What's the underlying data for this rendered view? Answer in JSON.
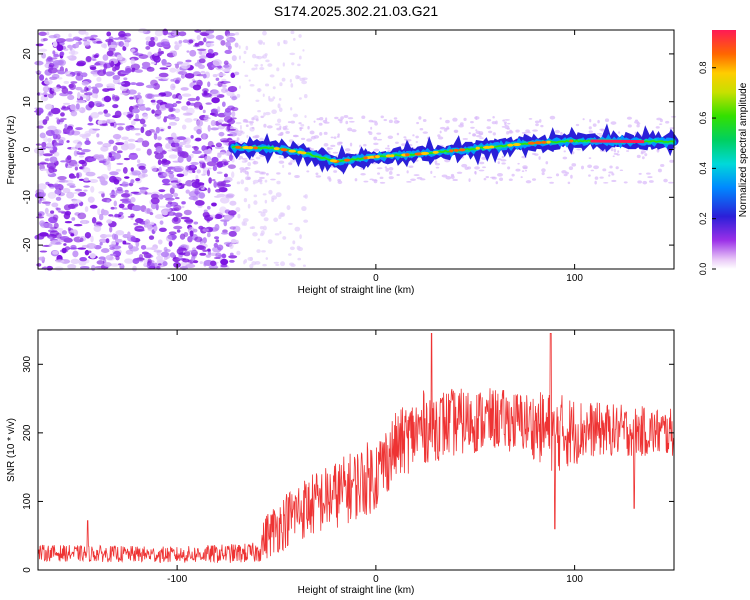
{
  "title": "S174.2025.302.21.03.G21",
  "chart_data": [
    {
      "type": "heatmap",
      "name": "spectrogram",
      "xlabel": "Height of straight line (km)",
      "ylabel": "Frequency (Hz)",
      "xlim": [
        -170,
        150
      ],
      "ylim": [
        -25,
        25
      ],
      "xticks": [
        -100,
        0,
        100
      ],
      "yticks": [
        -20,
        -10,
        0,
        10,
        20
      ],
      "colorbar": {
        "label": "Normalized spectral amplitude",
        "range": [
          0,
          0.95
        ],
        "ticks": [
          0.0,
          0.2,
          0.4,
          0.6,
          0.8
        ]
      },
      "signal_track": {
        "description_points": [
          {
            "x": -72,
            "freq": 0.5
          },
          {
            "x": -50,
            "freq": 0.2
          },
          {
            "x": -35,
            "freq": -0.8
          },
          {
            "x": -20,
            "freq": -2.5
          },
          {
            "x": 0,
            "freq": -1.5
          },
          {
            "x": 20,
            "freq": -1.0
          },
          {
            "x": 40,
            "freq": -0.2
          },
          {
            "x": 60,
            "freq": 0.6
          },
          {
            "x": 80,
            "freq": 1.4
          },
          {
            "x": 100,
            "freq": 1.8
          },
          {
            "x": 150,
            "freq": 1.6
          }
        ]
      }
    },
    {
      "type": "line",
      "name": "snr",
      "xlabel": "Height of straight line (km)",
      "ylabel": "SNR (10 * v/v)",
      "xlim": [
        -170,
        150
      ],
      "ylim": [
        0,
        350
      ],
      "xticks": [
        -100,
        0,
        100
      ],
      "yticks": [
        0,
        100,
        200,
        300
      ],
      "color": "#ee3333",
      "envelope": [
        {
          "x": -170,
          "mean": 25,
          "amp": 12
        },
        {
          "x": -100,
          "mean": 22,
          "amp": 12
        },
        {
          "x": -60,
          "mean": 25,
          "amp": 15
        },
        {
          "x": -55,
          "mean": 50,
          "amp": 35
        },
        {
          "x": -40,
          "mean": 85,
          "amp": 45
        },
        {
          "x": -20,
          "mean": 110,
          "amp": 50
        },
        {
          "x": 0,
          "mean": 140,
          "amp": 55
        },
        {
          "x": 10,
          "mean": 180,
          "amp": 50
        },
        {
          "x": 25,
          "mean": 210,
          "amp": 55
        },
        {
          "x": 40,
          "mean": 215,
          "amp": 50
        },
        {
          "x": 60,
          "mean": 220,
          "amp": 45
        },
        {
          "x": 75,
          "mean": 215,
          "amp": 45
        },
        {
          "x": 90,
          "mean": 200,
          "amp": 60
        },
        {
          "x": 110,
          "mean": 205,
          "amp": 40
        },
        {
          "x": 150,
          "mean": 200,
          "amp": 35
        }
      ],
      "spikes": [
        {
          "x": 28,
          "y": 345
        },
        {
          "x": 88,
          "y": 345
        },
        {
          "x": 90,
          "y": 60
        },
        {
          "x": 130,
          "y": 90
        },
        {
          "x": -145,
          "y": 72
        }
      ]
    }
  ]
}
